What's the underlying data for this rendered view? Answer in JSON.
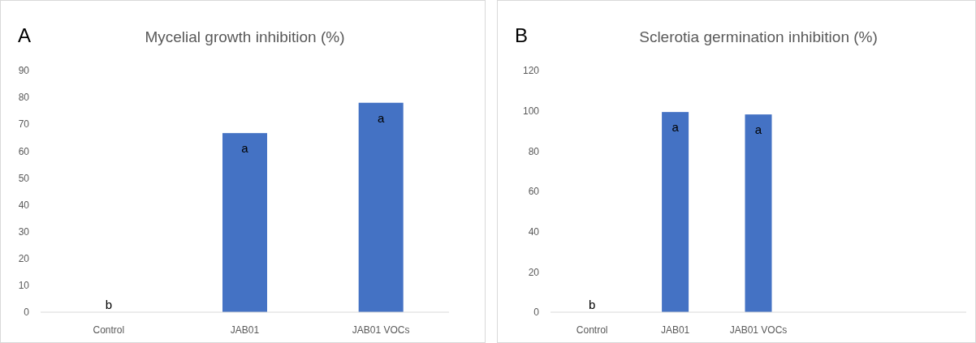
{
  "chart_data": [
    {
      "type": "bar",
      "title": "Mycelial growth inhibition (%)",
      "categories": [
        "Control",
        "JAB01",
        "JAB01 VOCs"
      ],
      "values": [
        0,
        66.7,
        78
      ],
      "color": "#4472c4",
      "ylim": [
        0,
        90
      ],
      "yticks": [
        0,
        10,
        20,
        30,
        40,
        50,
        60,
        70,
        80,
        90
      ],
      "grid": false,
      "annotations": [
        "A",
        {
          "text": "b",
          "x": "Control",
          "y": 0
        },
        {
          "text": "a",
          "x": "JAB01",
          "y": 66.7
        },
        {
          "text": "a",
          "x": "JAB01 VOCs",
          "y": 78
        }
      ]
    },
    {
      "type": "bar",
      "title": "Sclerotia germination inhibition (%)",
      "categories": [
        "Control",
        "JAB01",
        "JAB01 VOCs",
        null,
        null
      ],
      "values": [
        0,
        99.4,
        98.2,
        null,
        null
      ],
      "color": "#4472c4",
      "ylim": [
        0,
        120
      ],
      "yticks": [
        0,
        20,
        40,
        60,
        80,
        100,
        120
      ],
      "grid": false,
      "annotations": [
        "B",
        {
          "text": "b",
          "x": "Control",
          "y": 0
        },
        {
          "text": "a",
          "x": "JAB01",
          "y": 99.4
        },
        {
          "text": "a",
          "x": "JAB01 VOCs",
          "y": 98.2
        }
      ]
    }
  ]
}
